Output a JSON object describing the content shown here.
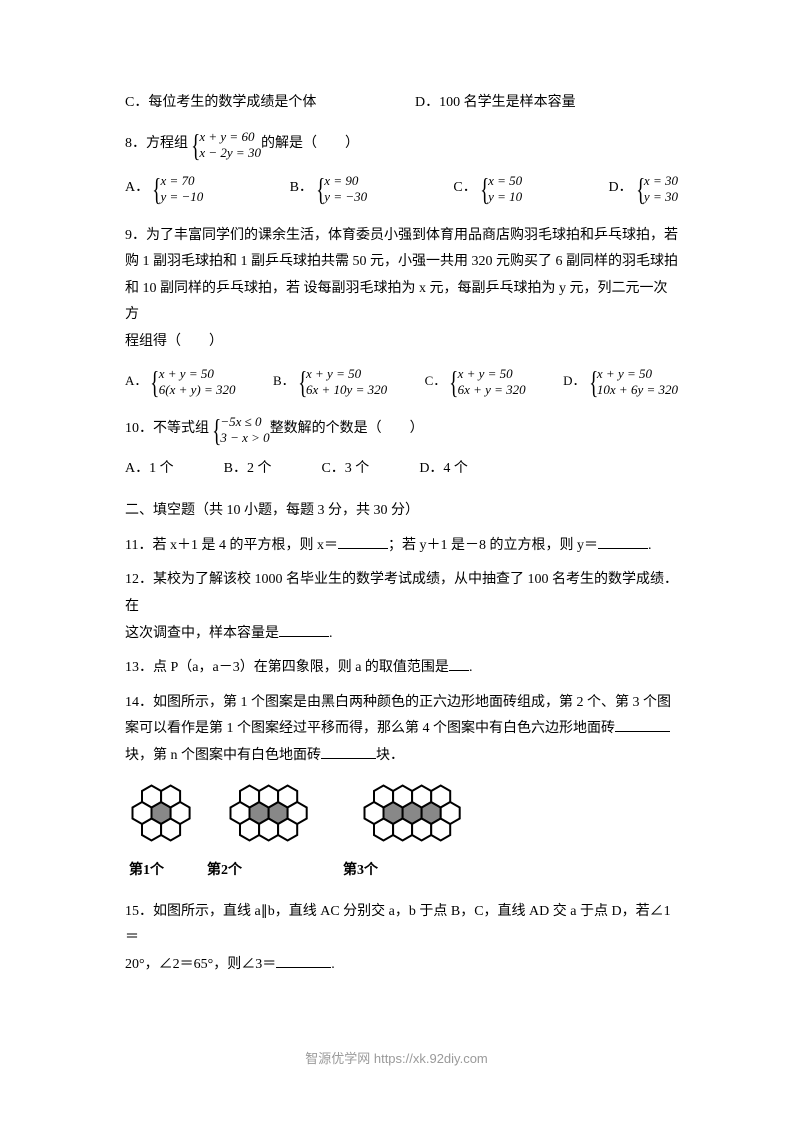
{
  "q7": {
    "c": "C．每位考生的数学成绩是个体",
    "d": "D．100 名学生是样本容量"
  },
  "q8": {
    "stem_prefix": "8．方程组",
    "sys_top": "x + y = 60",
    "sys_bot": "x − 2y = 30",
    "stem_suffix": " 的解是（　　）",
    "opts": {
      "a": {
        "label": "A．",
        "top": "x = 70",
        "bot": "y = −10"
      },
      "b": {
        "label": "B．",
        "top": "x = 90",
        "bot": "y = −30"
      },
      "c": {
        "label": "C．",
        "top": "x = 50",
        "bot": "y = 10"
      },
      "d": {
        "label": "D．",
        "top": "x = 30",
        "bot": "y = 30"
      }
    }
  },
  "q9": {
    "line1": "9．为了丰富同学们的课余生活，体育委员小强到体育用品商店购羽毛球拍和乒乓球拍，若",
    "line2": "购 1 副羽毛球拍和 1 副乒乓球拍共需 50 元，小强一共用 320 元购买了 6 副同样的羽毛球拍",
    "line3": "和 10 副同样的乒乓球拍，若 设每副羽毛球拍为 x 元，每副乒乓球拍为 y 元，列二元一次方",
    "line4": "程组得（　　）",
    "opts": {
      "a": {
        "label": "A．",
        "top": "x + y = 50",
        "bot": "6(x + y) = 320"
      },
      "b": {
        "label": "B．",
        "top": "x + y = 50",
        "bot": "6x + 10y = 320"
      },
      "c": {
        "label": "C．",
        "top": "x + y = 50",
        "bot": "6x + y = 320"
      },
      "d": {
        "label": "D．",
        "top": "x + y = 50",
        "bot": "10x + 6y = 320"
      }
    }
  },
  "q10": {
    "stem_prefix": "10．不等式组",
    "sys_top": "−5x ≤ 0",
    "sys_bot": "3 − x > 0",
    "stem_suffix": " 整数解的个数是（　　）",
    "a": "A．1 个",
    "b": "B．2 个",
    "c": "C．3 个",
    "d": "D．4 个"
  },
  "section2": "二、填空题（共 10 小题，每题 3 分，共 30 分）",
  "q11": {
    "p1": "11．若 x＋1 是 4 的平方根，则 x＝",
    "p2": "；若 y＋1 是－8 的立方根，则 y＝",
    "p3": "."
  },
  "q12": {
    "p1": "12．某校为了解该校 1000 名毕业生的数学考试成绩，从中抽查了 100 名考生的数学成绩．在",
    "p2": "这次调查中，样本容量是",
    "p3": "."
  },
  "q13": {
    "p1": "13．点 P（a，a－3）在第四象限，则 a 的取值范围是",
    "p2": "."
  },
  "q14": {
    "p1": "14．如图所示，第 1 个图案是由黑白两种颜色的正六边形地面砖组成，第 2 个、第 3 个图",
    "p2": "案可以看作是第 1 个图案经过平移而得，那么第 4 个图案中有白色六边形地面砖",
    "p3": "块，第 n 个图案中有白色地面砖",
    "p4": "块．",
    "labels": {
      "l1": "第1个",
      "l2": "第2个",
      "l3": "第3个"
    }
  },
  "q15": {
    "p1": "15．如图所示，直线 a∥b，直线 AC 分别交 a，b 于点 B，C，直线 AD 交 a 于点 D，若∠1＝",
    "p2": "20°，∠2＝65°，则∠3＝",
    "p3": "."
  },
  "hex": {
    "white": "#ffffff",
    "black": "#000000",
    "gray": "#888888",
    "stroke_w": 2
  },
  "footer": "智源优学网 https://xk.92diy.com"
}
